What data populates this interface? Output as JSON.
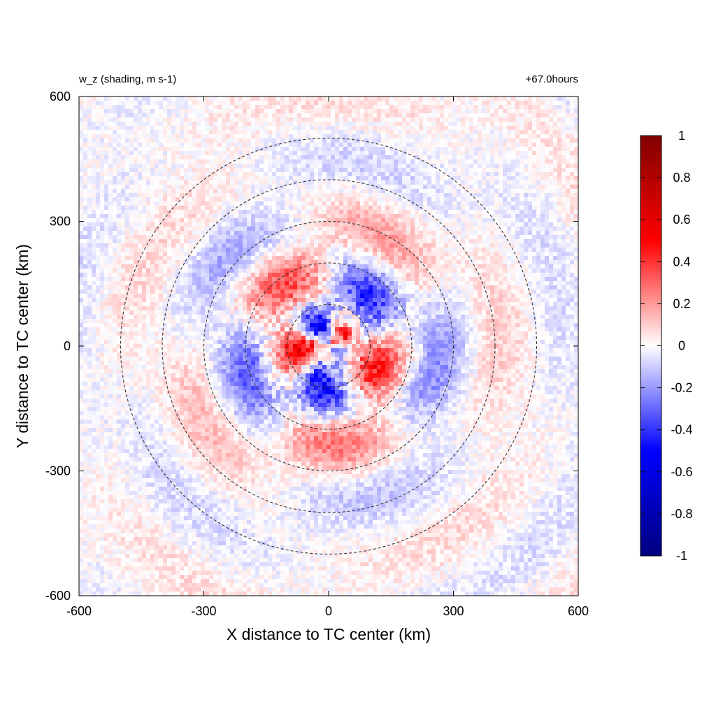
{
  "chart_data": {
    "type": "heatmap",
    "title_left": "w_z (shading, m s-1)",
    "title_right": "+67.0hours",
    "xlabel": "X distance to TC center (km)",
    "ylabel": "Y distance to TC center (km)",
    "xlim": [
      -600,
      600
    ],
    "ylim": [
      -600,
      600
    ],
    "x_ticks": [
      "-600",
      "-300",
      "0",
      "300",
      "600"
    ],
    "x_tick_values": [
      -600,
      -300,
      0,
      300,
      600
    ],
    "y_ticks": [
      "600",
      "300",
      "0",
      "-300",
      "-600"
    ],
    "y_tick_values": [
      600,
      300,
      0,
      -300,
      -600
    ],
    "circle_radii_km": [
      100,
      200,
      300,
      400,
      500
    ],
    "circle_style": "dashed",
    "colorbar": {
      "range": [
        -1,
        1
      ],
      "tick_labels": [
        "1",
        "0.8",
        "0.6",
        "0.4",
        "0.2",
        "0",
        "-0.2",
        "-0.4",
        "-0.6",
        "-0.8",
        "-1"
      ],
      "tick_values": [
        1,
        0.8,
        0.6,
        0.4,
        0.2,
        0,
        -0.2,
        -0.4,
        -0.6,
        -0.8,
        -1
      ],
      "colors": [
        "#000080",
        "#0000ff",
        "#ffffff",
        "#ff0000",
        "#800000"
      ],
      "placement": "right"
    }
  }
}
